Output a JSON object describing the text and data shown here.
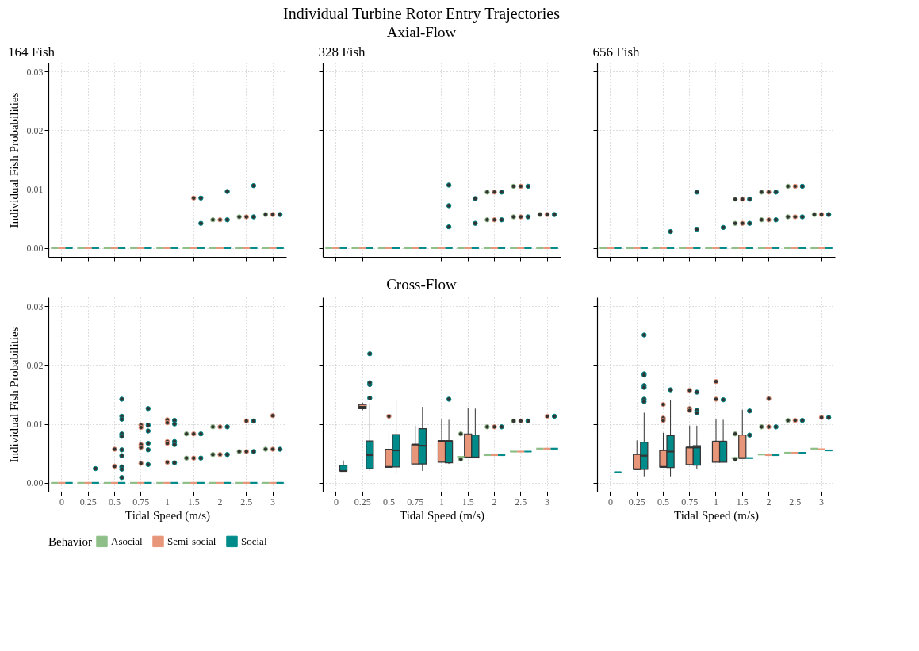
{
  "chart_data": [
    {
      "type": "box",
      "title": "164 Fish",
      "annotations": [
        "Individual Turbine Rotor Entry Trajectories",
        "Axial-Flow"
      ],
      "ylabel": "Individual Fish Probabilities",
      "categories": [
        "0",
        "0.25",
        "0.5",
        "0.75",
        "1",
        "1.5",
        "2",
        "2.5",
        "3"
      ],
      "ylim": [
        -0.0015,
        0.0315
      ],
      "yticks": [
        {
          "value": 0,
          "label": "0.00"
        },
        {
          "value": 0.01,
          "label": "0.01"
        },
        {
          "value": 0.02,
          "label": "0.02"
        },
        {
          "value": 0.03,
          "label": "0.03"
        }
      ],
      "grid": true,
      "tick_labels": "y",
      "legend": "bottom",
      "legend_title": "Behavior",
      "series": [
        {
          "name": "Asocial",
          "color": "#8fbf88",
          "boxes": [
            {
              "low": 0,
              "q1": 0,
              "median": 0,
              "q3": 0,
              "high": 0
            },
            {
              "low": 0,
              "q1": 0,
              "median": 0,
              "q3": 0,
              "high": 0
            },
            {
              "low": 0,
              "q1": 0,
              "median": 0,
              "q3": 0,
              "high": 0
            },
            {
              "low": 0,
              "q1": 0,
              "median": 0,
              "q3": 0,
              "high": 0
            },
            {
              "low": 0,
              "q1": 0,
              "median": 0,
              "q3": 0,
              "high": 0
            },
            {
              "low": 0,
              "q1": 0,
              "median": 0,
              "q3": 0,
              "high": 0
            },
            {
              "low": 0,
              "q1": 0,
              "median": 0,
              "q3": 0,
              "high": 0,
              "outliers": [
                0.0048
              ]
            },
            {
              "low": 0,
              "q1": 0,
              "median": 0,
              "q3": 0,
              "high": 0,
              "outliers": [
                0.0053
              ]
            },
            {
              "low": 0,
              "q1": 0,
              "median": 0,
              "q3": 0,
              "high": 0,
              "outliers": [
                0.0057
              ]
            }
          ]
        },
        {
          "name": "Semi-social",
          "color": "#e8967a",
          "boxes": [
            {
              "low": 0,
              "q1": 0,
              "median": 0,
              "q3": 0,
              "high": 0
            },
            {
              "low": 0,
              "q1": 0,
              "median": 0,
              "q3": 0,
              "high": 0
            },
            {
              "low": 0,
              "q1": 0,
              "median": 0,
              "q3": 0,
              "high": 0
            },
            {
              "low": 0,
              "q1": 0,
              "median": 0,
              "q3": 0,
              "high": 0
            },
            {
              "low": 0,
              "q1": 0,
              "median": 0,
              "q3": 0,
              "high": 0
            },
            {
              "low": 0,
              "q1": 0,
              "median": 0,
              "q3": 0,
              "high": 0,
              "outliers": [
                0.0085
              ]
            },
            {
              "low": 0,
              "q1": 0,
              "median": 0,
              "q3": 0,
              "high": 0,
              "outliers": [
                0.0048
              ]
            },
            {
              "low": 0,
              "q1": 0,
              "median": 0,
              "q3": 0,
              "high": 0,
              "outliers": [
                0.0053
              ]
            },
            {
              "low": 0,
              "q1": 0,
              "median": 0,
              "q3": 0,
              "high": 0,
              "outliers": [
                0.0057
              ]
            }
          ]
        },
        {
          "name": "Social",
          "color": "#008b8b",
          "boxes": [
            {
              "low": 0,
              "q1": 0,
              "median": 0,
              "q3": 0,
              "high": 0
            },
            {
              "low": 0,
              "q1": 0,
              "median": 0,
              "q3": 0,
              "high": 0
            },
            {
              "low": 0,
              "q1": 0,
              "median": 0,
              "q3": 0,
              "high": 0
            },
            {
              "low": 0,
              "q1": 0,
              "median": 0,
              "q3": 0,
              "high": 0
            },
            {
              "low": 0,
              "q1": 0,
              "median": 0,
              "q3": 0,
              "high": 0
            },
            {
              "low": 0,
              "q1": 0,
              "median": 0,
              "q3": 0,
              "high": 0,
              "outliers": [
                0.0085,
                0.0042
              ]
            },
            {
              "low": 0,
              "q1": 0,
              "median": 0,
              "q3": 0,
              "high": 0,
              "outliers": [
                0.0096,
                0.0048
              ]
            },
            {
              "low": 0,
              "q1": 0,
              "median": 0,
              "q3": 0,
              "high": 0,
              "outliers": [
                0.0106,
                0.0053
              ]
            },
            {
              "low": 0,
              "q1": 0,
              "median": 0,
              "q3": 0,
              "high": 0,
              "outliers": [
                0.0057
              ]
            }
          ]
        }
      ]
    },
    {
      "type": "box",
      "title": "328 Fish",
      "categories": [
        "0",
        "0.25",
        "0.5",
        "0.75",
        "1",
        "1.5",
        "2",
        "2.5",
        "3"
      ],
      "ylim": [
        -0.0015,
        0.0315
      ],
      "yticks": [
        0,
        0.01,
        0.02,
        0.03
      ],
      "grid": true,
      "tick_labels": false,
      "series": [
        {
          "color": "#8fbf88",
          "boxes": [
            {
              "low": 0,
              "q1": 0,
              "median": 0,
              "q3": 0,
              "high": 0
            },
            {
              "low": 0,
              "q1": 0,
              "median": 0,
              "q3": 0,
              "high": 0
            },
            {
              "low": 0,
              "q1": 0,
              "median": 0,
              "q3": 0,
              "high": 0
            },
            {
              "low": 0,
              "q1": 0,
              "median": 0,
              "q3": 0,
              "high": 0
            },
            {
              "low": 0,
              "q1": 0,
              "median": 0,
              "q3": 0,
              "high": 0
            },
            {
              "low": 0,
              "q1": 0,
              "median": 0,
              "q3": 0,
              "high": 0
            },
            {
              "low": 0,
              "q1": 0,
              "median": 0,
              "q3": 0,
              "high": 0,
              "outliers": [
                0.0095,
                0.0048
              ]
            },
            {
              "low": 0,
              "q1": 0,
              "median": 0,
              "q3": 0,
              "high": 0,
              "outliers": [
                0.0105,
                0.0053
              ]
            },
            {
              "low": 0,
              "q1": 0,
              "median": 0,
              "q3": 0,
              "high": 0,
              "outliers": [
                0.0057
              ]
            }
          ]
        },
        {
          "color": "#e8967a",
          "boxes": [
            {
              "low": 0,
              "q1": 0,
              "median": 0,
              "q3": 0,
              "high": 0
            },
            {
              "low": 0,
              "q1": 0,
              "median": 0,
              "q3": 0,
              "high": 0
            },
            {
              "low": 0,
              "q1": 0,
              "median": 0,
              "q3": 0,
              "high": 0
            },
            {
              "low": 0,
              "q1": 0,
              "median": 0,
              "q3": 0,
              "high": 0
            },
            {
              "low": 0,
              "q1": 0,
              "median": 0,
              "q3": 0,
              "high": 0
            },
            {
              "low": 0,
              "q1": 0,
              "median": 0,
              "q3": 0,
              "high": 0
            },
            {
              "low": 0,
              "q1": 0,
              "median": 0,
              "q3": 0,
              "high": 0,
              "outliers": [
                0.0095,
                0.0048
              ]
            },
            {
              "low": 0,
              "q1": 0,
              "median": 0,
              "q3": 0,
              "high": 0,
              "outliers": [
                0.0105,
                0.0053
              ]
            },
            {
              "low": 0,
              "q1": 0,
              "median": 0,
              "q3": 0,
              "high": 0,
              "outliers": [
                0.0057
              ]
            }
          ]
        },
        {
          "color": "#008b8b",
          "boxes": [
            {
              "low": 0,
              "q1": 0,
              "median": 0,
              "q3": 0,
              "high": 0
            },
            {
              "low": 0,
              "q1": 0,
              "median": 0,
              "q3": 0,
              "high": 0
            },
            {
              "low": 0,
              "q1": 0,
              "median": 0,
              "q3": 0,
              "high": 0
            },
            {
              "low": 0,
              "q1": 0,
              "median": 0,
              "q3": 0,
              "high": 0
            },
            {
              "low": 0,
              "q1": 0,
              "median": 0,
              "q3": 0,
              "high": 0,
              "outliers": [
                0.0107,
                0.0072,
                0.0036
              ]
            },
            {
              "low": 0,
              "q1": 0,
              "median": 0,
              "q3": 0,
              "high": 0,
              "outliers": [
                0.0084,
                0.0042
              ]
            },
            {
              "low": 0,
              "q1": 0,
              "median": 0,
              "q3": 0,
              "high": 0,
              "outliers": [
                0.0095,
                0.0048
              ]
            },
            {
              "low": 0,
              "q1": 0,
              "median": 0,
              "q3": 0,
              "high": 0,
              "outliers": [
                0.0105,
                0.0053
              ]
            },
            {
              "low": 0,
              "q1": 0,
              "median": 0,
              "q3": 0,
              "high": 0,
              "outliers": [
                0.0057
              ]
            }
          ]
        }
      ]
    },
    {
      "type": "box",
      "title": "656 Fish",
      "categories": [
        "0",
        "0.25",
        "0.5",
        "0.75",
        "1",
        "1.5",
        "2",
        "2.5",
        "3"
      ],
      "ylim": [
        -0.0015,
        0.0315
      ],
      "yticks": [
        0,
        0.01,
        0.02,
        0.03
      ],
      "grid": true,
      "tick_labels": false,
      "series": [
        {
          "color": "#8fbf88",
          "boxes": [
            {
              "low": 0,
              "q1": 0,
              "median": 0,
              "q3": 0,
              "high": 0
            },
            {
              "low": 0,
              "q1": 0,
              "median": 0,
              "q3": 0,
              "high": 0
            },
            {
              "low": 0,
              "q1": 0,
              "median": 0,
              "q3": 0,
              "high": 0
            },
            {
              "low": 0,
              "q1": 0,
              "median": 0,
              "q3": 0,
              "high": 0
            },
            {
              "low": 0,
              "q1": 0,
              "median": 0,
              "q3": 0,
              "high": 0
            },
            {
              "low": 0,
              "q1": 0,
              "median": 0,
              "q3": 0,
              "high": 0,
              "outliers": [
                0.0083,
                0.0042
              ]
            },
            {
              "low": 0,
              "q1": 0,
              "median": 0,
              "q3": 0,
              "high": 0,
              "outliers": [
                0.0095,
                0.0048
              ]
            },
            {
              "low": 0,
              "q1": 0,
              "median": 0,
              "q3": 0,
              "high": 0,
              "outliers": [
                0.0105,
                0.0053
              ]
            },
            {
              "low": 0,
              "q1": 0,
              "median": 0,
              "q3": 0,
              "high": 0,
              "outliers": [
                0.0057
              ]
            }
          ]
        },
        {
          "color": "#e8967a",
          "boxes": [
            {
              "low": 0,
              "q1": 0,
              "median": 0,
              "q3": 0,
              "high": 0
            },
            {
              "low": 0,
              "q1": 0,
              "median": 0,
              "q3": 0,
              "high": 0
            },
            {
              "low": 0,
              "q1": 0,
              "median": 0,
              "q3": 0,
              "high": 0
            },
            {
              "low": 0,
              "q1": 0,
              "median": 0,
              "q3": 0,
              "high": 0
            },
            {
              "low": 0,
              "q1": 0,
              "median": 0,
              "q3": 0,
              "high": 0
            },
            {
              "low": 0,
              "q1": 0,
              "median": 0,
              "q3": 0,
              "high": 0,
              "outliers": [
                0.0083,
                0.0042
              ]
            },
            {
              "low": 0,
              "q1": 0,
              "median": 0,
              "q3": 0,
              "high": 0,
              "outliers": [
                0.0095,
                0.0048
              ]
            },
            {
              "low": 0,
              "q1": 0,
              "median": 0,
              "q3": 0,
              "high": 0,
              "outliers": [
                0.0105,
                0.0053
              ]
            },
            {
              "low": 0,
              "q1": 0,
              "median": 0,
              "q3": 0,
              "high": 0,
              "outliers": [
                0.0057
              ]
            }
          ]
        },
        {
          "color": "#008b8b",
          "boxes": [
            {
              "low": 0,
              "q1": 0,
              "median": 0,
              "q3": 0,
              "high": 0
            },
            {
              "low": 0,
              "q1": 0,
              "median": 0,
              "q3": 0,
              "high": 0
            },
            {
              "low": 0,
              "q1": 0,
              "median": 0,
              "q3": 0,
              "high": 0,
              "outliers": [
                0.0028
              ]
            },
            {
              "low": 0,
              "q1": 0,
              "median": 0,
              "q3": 0,
              "high": 0,
              "outliers": [
                0.0095,
                0.0032
              ]
            },
            {
              "low": 0,
              "q1": 0,
              "median": 0,
              "q3": 0,
              "high": 0,
              "outliers": [
                0.0035
              ]
            },
            {
              "low": 0,
              "q1": 0,
              "median": 0,
              "q3": 0,
              "high": 0,
              "outliers": [
                0.0083,
                0.0042
              ]
            },
            {
              "low": 0,
              "q1": 0,
              "median": 0,
              "q3": 0,
              "high": 0,
              "outliers": [
                0.0095,
                0.0048
              ]
            },
            {
              "low": 0,
              "q1": 0,
              "median": 0,
              "q3": 0,
              "high": 0,
              "outliers": [
                0.0105,
                0.0053
              ]
            },
            {
              "low": 0,
              "q1": 0,
              "median": 0,
              "q3": 0,
              "high": 0,
              "outliers": [
                0.0057
              ]
            }
          ]
        }
      ]
    },
    {
      "type": "box",
      "annotations": [
        "Cross-Flow"
      ],
      "xlabel": "Tidal Speed (m/s)",
      "ylabel": "Individual Fish Probabilities",
      "categories": [
        "0",
        "0.25",
        "0.5",
        "0.75",
        "1",
        "1.5",
        "2",
        "2.5",
        "3"
      ],
      "ylim": [
        -0.0015,
        0.0315
      ],
      "yticks": [
        {
          "value": 0,
          "label": "0.00"
        },
        {
          "value": 0.01,
          "label": "0.01"
        },
        {
          "value": 0.02,
          "label": "0.02"
        },
        {
          "value": 0.03,
          "label": "0.03"
        }
      ],
      "grid": true,
      "series": [
        {
          "color": "#8fbf88",
          "boxes": [
            {
              "low": 0,
              "q1": 0,
              "median": 0,
              "q3": 0,
              "high": 0
            },
            {
              "low": 0,
              "q1": 0,
              "median": 0,
              "q3": 0,
              "high": 0
            },
            {
              "low": 0,
              "q1": 0,
              "median": 0,
              "q3": 0,
              "high": 0
            },
            {
              "low": 0,
              "q1": 0,
              "median": 0,
              "q3": 0,
              "high": 0
            },
            {
              "low": 0,
              "q1": 0,
              "median": 0,
              "q3": 0,
              "high": 0
            },
            {
              "low": 0,
              "q1": 0,
              "median": 0,
              "q3": 0,
              "high": 0,
              "outliers": [
                0.0083,
                0.0042
              ]
            },
            {
              "low": 0,
              "q1": 0,
              "median": 0,
              "q3": 0,
              "high": 0,
              "outliers": [
                0.0095,
                0.0048
              ]
            },
            {
              "low": 0,
              "q1": 0,
              "median": 0,
              "q3": 0,
              "high": 0,
              "outliers": [
                0.0053
              ]
            },
            {
              "low": 0,
              "q1": 0,
              "median": 0,
              "q3": 0,
              "high": 0,
              "outliers": [
                0.0057
              ]
            }
          ]
        },
        {
          "color": "#e8967a",
          "boxes": [
            {
              "low": 0,
              "q1": 0,
              "median": 0,
              "q3": 0,
              "high": 0
            },
            {
              "low": 0,
              "q1": 0,
              "median": 0,
              "q3": 0,
              "high": 0
            },
            {
              "low": 0,
              "q1": 0,
              "median": 0,
              "q3": 0,
              "high": 0,
              "outliers": [
                0.0057,
                0.0028
              ]
            },
            {
              "low": 0,
              "q1": 0,
              "median": 0,
              "q3": 0,
              "high": 0,
              "outliers": [
                0.0098,
                0.0094,
                0.0065,
                0.006,
                0.0033
              ]
            },
            {
              "low": 0,
              "q1": 0,
              "median": 0,
              "q3": 0,
              "high": 0,
              "outliers": [
                0.0107,
                0.0102,
                0.007,
                0.0067,
                0.0035
              ]
            },
            {
              "low": 0,
              "q1": 0,
              "median": 0,
              "q3": 0,
              "high": 0,
              "outliers": [
                0.0083,
                0.0042
              ]
            },
            {
              "low": 0,
              "q1": 0,
              "median": 0,
              "q3": 0,
              "high": 0,
              "outliers": [
                0.0095,
                0.0048
              ]
            },
            {
              "low": 0,
              "q1": 0,
              "median": 0,
              "q3": 0,
              "high": 0,
              "outliers": [
                0.0105,
                0.0053
              ]
            },
            {
              "low": 0,
              "q1": 0,
              "median": 0,
              "q3": 0,
              "high": 0,
              "outliers": [
                0.0114,
                0.0057
              ]
            }
          ]
        },
        {
          "color": "#008b8b",
          "boxes": [
            {
              "low": 0,
              "q1": 0,
              "median": 0,
              "q3": 0,
              "high": 0
            },
            {
              "low": 0,
              "q1": 0,
              "median": 0,
              "q3": 0,
              "high": 0,
              "outliers": [
                0.0024
              ]
            },
            {
              "low": 0,
              "q1": 0,
              "median": 0,
              "q3": 0,
              "high": 0,
              "outliers": [
                0.0142,
                0.0113,
                0.0108,
                0.0083,
                0.0079,
                0.0056,
                0.0046,
                0.0027,
                0.0023,
                0.0009
              ]
            },
            {
              "low": 0,
              "q1": 0,
              "median": 0,
              "q3": 0,
              "high": 0,
              "outliers": [
                0.0126,
                0.0098,
                0.0088,
                0.0067,
                0.0056,
                0.0031
              ]
            },
            {
              "low": 0,
              "q1": 0,
              "median": 0,
              "q3": 0,
              "high": 0,
              "outliers": [
                0.0106,
                0.01,
                0.007,
                0.0065,
                0.0034
              ]
            },
            {
              "low": 0,
              "q1": 0,
              "median": 0,
              "q3": 0,
              "high": 0,
              "outliers": [
                0.0083,
                0.0042
              ]
            },
            {
              "low": 0,
              "q1": 0,
              "median": 0,
              "q3": 0,
              "high": 0,
              "outliers": [
                0.0095,
                0.0048
              ]
            },
            {
              "low": 0,
              "q1": 0,
              "median": 0,
              "q3": 0,
              "high": 0,
              "outliers": [
                0.0105,
                0.0053
              ]
            },
            {
              "low": 0,
              "q1": 0,
              "median": 0,
              "q3": 0,
              "high": 0,
              "outliers": [
                0.0057
              ]
            }
          ]
        }
      ]
    },
    {
      "type": "box",
      "xlabel": "Tidal Speed (m/s)",
      "categories": [
        "0",
        "0.25",
        "0.5",
        "0.75",
        "1",
        "1.5",
        "2",
        "2.5",
        "3"
      ],
      "ylim": [
        -0.0015,
        0.0315
      ],
      "yticks": [
        0,
        0.01,
        0.02,
        0.03
      ],
      "grid": true,
      "tick_labels": "x",
      "series": [
        {
          "color": "#8fbf88",
          "boxes": [
            null,
            null,
            null,
            null,
            null,
            {
              "low": 0.0044,
              "q1": 0.0044,
              "median": 0.0044,
              "q3": 0.0044,
              "high": 0.0044,
              "outliers": [
                0.0083,
                0.004
              ]
            },
            {
              "low": 0.0047,
              "q1": 0.0047,
              "median": 0.0047,
              "q3": 0.0047,
              "high": 0.0047,
              "outliers": [
                0.0095
              ]
            },
            {
              "low": 0.0053,
              "q1": 0.0053,
              "median": 0.0053,
              "q3": 0.0053,
              "high": 0.0053,
              "outliers": [
                0.0105
              ]
            },
            {
              "low": 0.0058,
              "q1": 0.0058,
              "median": 0.0058,
              "q3": 0.0058,
              "high": 0.0058
            }
          ]
        },
        {
          "color": "#e8967a",
          "boxes": [
            null,
            {
              "low": 0.0123,
              "q1": 0.0126,
              "median": 0.0129,
              "q3": 0.0133,
              "high": 0.0136
            },
            {
              "low": 0.0027,
              "q1": 0.0027,
              "median": 0.0027,
              "q3": 0.0057,
              "high": 0.0085,
              "outliers": [
                0.0113
              ]
            },
            {
              "low": 0.0032,
              "q1": 0.0032,
              "median": 0.0065,
              "q3": 0.0065,
              "high": 0.0097
            },
            {
              "low": 0.0035,
              "q1": 0.0035,
              "median": 0.0071,
              "q3": 0.0071,
              "high": 0.0108
            },
            {
              "low": 0.0043,
              "q1": 0.0043,
              "median": 0.0043,
              "q3": 0.0083,
              "high": 0.0127
            },
            {
              "low": 0.0047,
              "q1": 0.0047,
              "median": 0.0047,
              "q3": 0.0047,
              "high": 0.0047,
              "outliers": [
                0.0095
              ]
            },
            {
              "low": 0.0053,
              "q1": 0.0053,
              "median": 0.0053,
              "q3": 0.0053,
              "high": 0.0053,
              "outliers": [
                0.0105
              ]
            },
            {
              "low": 0.0058,
              "q1": 0.0058,
              "median": 0.0058,
              "q3": 0.0058,
              "high": 0.0058,
              "outliers": [
                0.0113
              ]
            }
          ]
        },
        {
          "color": "#008b8b",
          "boxes": [
            {
              "low": 0.002,
              "q1": 0.002,
              "median": 0.002,
              "q3": 0.003,
              "high": 0.0038
            },
            {
              "low": 0.002,
              "q1": 0.0024,
              "median": 0.0047,
              "q3": 0.0071,
              "high": 0.0135,
              "outliers": [
                0.0144,
                0.0167,
                0.017,
                0.0219
              ]
            },
            {
              "low": 0.0015,
              "q1": 0.0027,
              "median": 0.0055,
              "q3": 0.0082,
              "high": 0.0142
            },
            {
              "low": 0.002,
              "q1": 0.0032,
              "median": 0.0063,
              "q3": 0.0092,
              "high": 0.0129
            },
            {
              "low": 0.0032,
              "q1": 0.0034,
              "median": 0.0071,
              "q3": 0.0071,
              "high": 0.0107,
              "outliers": [
                0.0142
              ]
            },
            {
              "low": 0.0043,
              "q1": 0.0043,
              "median": 0.0043,
              "q3": 0.0081,
              "high": 0.0126
            },
            {
              "low": 0.0047,
              "q1": 0.0047,
              "median": 0.0047,
              "q3": 0.0047,
              "high": 0.0047,
              "outliers": [
                0.0095
              ]
            },
            {
              "low": 0.0053,
              "q1": 0.0053,
              "median": 0.0053,
              "q3": 0.0053,
              "high": 0.0053,
              "outliers": [
                0.0105
              ]
            },
            {
              "low": 0.0058,
              "q1": 0.0058,
              "median": 0.0058,
              "q3": 0.0058,
              "high": 0.0058,
              "outliers": [
                0.0113
              ]
            }
          ]
        }
      ]
    },
    {
      "type": "box",
      "xlabel": "Tidal Speed (m/s)",
      "categories": [
        "0",
        "0.25",
        "0.5",
        "0.75",
        "1",
        "1.5",
        "2",
        "2.5",
        "3"
      ],
      "ylim": [
        -0.0015,
        0.0315
      ],
      "yticks": [
        0,
        0.01,
        0.02,
        0.03
      ],
      "grid": true,
      "tick_labels": "x",
      "series": [
        {
          "color": "#8fbf88",
          "boxes": [
            null,
            null,
            null,
            null,
            null,
            {
              "low": 0.0042,
              "q1": 0.0042,
              "median": 0.0042,
              "q3": 0.0042,
              "high": 0.0042,
              "outliers": [
                0.0083,
                0.004
              ]
            },
            {
              "low": 0.0048,
              "q1": 0.0048,
              "median": 0.0048,
              "q3": 0.0048,
              "high": 0.0048,
              "outliers": [
                0.0095
              ]
            },
            {
              "low": 0.0051,
              "q1": 0.0051,
              "median": 0.0051,
              "q3": 0.0051,
              "high": 0.0051,
              "outliers": [
                0.0106
              ]
            },
            {
              "low": 0.0058,
              "q1": 0.0058,
              "median": 0.0058,
              "q3": 0.0058,
              "high": 0.0058
            }
          ]
        },
        {
          "color": "#e8967a",
          "boxes": [
            null,
            {
              "low": 0.0023,
              "q1": 0.0023,
              "median": 0.0023,
              "q3": 0.0048,
              "high": 0.0072
            },
            {
              "low": 0.0027,
              "q1": 0.0027,
              "median": 0.0027,
              "q3": 0.0055,
              "high": 0.0085,
              "outliers": [
                0.0133,
                0.011,
                0.0106
              ]
            },
            {
              "low": 0.0031,
              "q1": 0.0031,
              "median": 0.006,
              "q3": 0.006,
              "high": 0.0097,
              "outliers": [
                0.0157,
                0.0126,
                0.0123
              ]
            },
            {
              "low": 0.0035,
              "q1": 0.0035,
              "median": 0.007,
              "q3": 0.007,
              "high": 0.0108,
              "outliers": [
                0.0172,
                0.0142
              ]
            },
            {
              "low": 0.0042,
              "q1": 0.0042,
              "median": 0.0042,
              "q3": 0.0081,
              "high": 0.0124
            },
            {
              "low": 0.0047,
              "q1": 0.0047,
              "median": 0.0047,
              "q3": 0.0047,
              "high": 0.0047,
              "outliers": [
                0.0143,
                0.0095
              ]
            },
            {
              "low": 0.0051,
              "q1": 0.0051,
              "median": 0.0051,
              "q3": 0.0051,
              "high": 0.0051,
              "outliers": [
                0.0106
              ]
            },
            {
              "low": 0.0057,
              "q1": 0.0057,
              "median": 0.0057,
              "q3": 0.0057,
              "high": 0.0057,
              "outliers": [
                0.0111
              ]
            }
          ]
        },
        {
          "color": "#008b8b",
          "boxes": [
            {
              "low": 0.0018,
              "q1": 0.0018,
              "median": 0.0018,
              "q3": 0.0018,
              "high": 0.0018
            },
            {
              "low": 0.0011,
              "q1": 0.0023,
              "median": 0.0046,
              "q3": 0.0069,
              "high": 0.0119,
              "outliers": [
                0.0251,
                0.0185,
                0.0183,
                0.0165,
                0.0162,
                0.0142,
                0.0138
              ]
            },
            {
              "low": 0.0011,
              "q1": 0.0026,
              "median": 0.0053,
              "q3": 0.008,
              "high": 0.0141,
              "outliers": [
                0.0158
              ]
            },
            {
              "low": 0.0023,
              "q1": 0.003,
              "median": 0.006,
              "q3": 0.0063,
              "high": 0.0097,
              "outliers": [
                0.0154,
                0.0123,
                0.0119
              ]
            },
            {
              "low": 0.0035,
              "q1": 0.0035,
              "median": 0.007,
              "q3": 0.007,
              "high": 0.0107,
              "outliers": [
                0.0141
              ]
            },
            {
              "low": 0.0042,
              "q1": 0.0042,
              "median": 0.0042,
              "q3": 0.0042,
              "high": 0.0042,
              "outliers": [
                0.0081,
                0.0122
              ]
            },
            {
              "low": 0.0047,
              "q1": 0.0047,
              "median": 0.0047,
              "q3": 0.0047,
              "high": 0.0047,
              "outliers": [
                0.0095
              ]
            },
            {
              "low": 0.0051,
              "q1": 0.0051,
              "median": 0.0051,
              "q3": 0.0051,
              "high": 0.0051,
              "outliers": [
                0.0106
              ]
            },
            {
              "low": 0.0055,
              "q1": 0.0055,
              "median": 0.0055,
              "q3": 0.0055,
              "high": 0.0055,
              "outliers": [
                0.0111
              ]
            }
          ]
        }
      ]
    }
  ]
}
